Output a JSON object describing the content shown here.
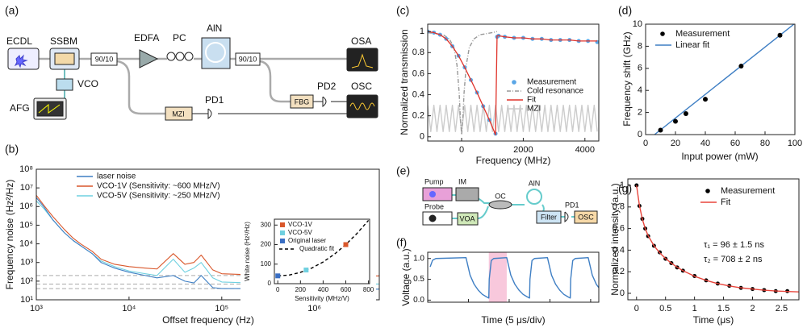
{
  "panel_labels": [
    "(a)",
    "(b)",
    "(c)",
    "(d)",
    "(e)",
    "(f)",
    "(g)"
  ],
  "diagram_a": {
    "labels": [
      "ECDL",
      "SSBM",
      "AFG",
      "VCO",
      "90/10",
      "EDFA",
      "PC",
      "AlN",
      "90/10",
      "OSA",
      "OSC",
      "PD2",
      "FBG",
      "MZI",
      "PD1"
    ]
  },
  "diagram_e": {
    "labels": [
      "Pump",
      "IM",
      "Probe",
      "VOA",
      "OC",
      "AlN",
      "Filter",
      "PD1",
      "OSC"
    ]
  },
  "chart_data": [
    {
      "type": "line",
      "x_label": "Offset frequency (Hz)",
      "y_label": "Frequency noise (Hz²/Hz)",
      "xscale": "log",
      "yscale": "log",
      "xlim": [
        1000,
        5000000
      ],
      "ylim": [
        10,
        100000000
      ],
      "xticks": [
        {
          "value": 1000,
          "label": "10³"
        },
        {
          "value": 10000,
          "label": "10⁴"
        },
        {
          "value": 100000,
          "label": "10⁵"
        },
        {
          "value": 1000000,
          "label": "10⁶"
        }
      ],
      "yticks": [
        {
          "value": 10,
          "label": "10¹"
        },
        {
          "value": 100,
          "label": "10²"
        },
        {
          "value": 1000,
          "label": "10³"
        },
        {
          "value": 10000,
          "label": "10⁴"
        },
        {
          "value": 100000,
          "label": "10⁵"
        },
        {
          "value": 1000000,
          "label": "10⁶"
        },
        {
          "value": 10000000,
          "label": "10⁷"
        },
        {
          "value": 100000000,
          "label": "10⁸"
        }
      ],
      "x": [
        1000,
        1200,
        1500,
        2000,
        2500,
        3000,
        4000,
        5000,
        7000,
        10000,
        15000,
        20000,
        30000,
        40000,
        50000,
        60000,
        80000,
        100000,
        200000,
        500000,
        1000000,
        5000000
      ],
      "reference_lines": [
        200,
        70,
        40
      ],
      "legend": "upper center",
      "series": [
        {
          "name": "laser noise",
          "color": "#3f7fc4",
          "values": [
            3000000,
            1000000,
            200000,
            40000,
            15000,
            8000,
            3000,
            1000,
            500,
            300,
            200,
            150,
            200,
            100,
            80,
            200,
            45,
            40,
            40,
            38,
            38,
            37
          ]
        },
        {
          "name": "VCO-1V (Sensitivity: ~600 MHz/V)",
          "color": "#d9572b",
          "values": [
            4000000,
            1200000,
            300000,
            60000,
            20000,
            10000,
            4000,
            1500,
            800,
            600,
            500,
            450,
            3000,
            800,
            1000,
            2500,
            400,
            250,
            220,
            200,
            200,
            190
          ]
        },
        {
          "name": "VCO-5V (Sensitivity: ~250 MHz/V)",
          "color": "#6fd0e0",
          "values": [
            2000000,
            800000,
            200000,
            40000,
            15000,
            8000,
            3000,
            1200,
            600,
            350,
            250,
            200,
            1500,
            300,
            500,
            1000,
            150,
            90,
            80,
            75,
            72,
            70
          ]
        }
      ]
    },
    {
      "type": "line",
      "x_label": "Frequency (MHz)",
      "y_label": "Normalized transmission",
      "xlim": [
        -1100,
        4450
      ],
      "ylim": [
        -0.04,
        1.07
      ],
      "xticks": [
        0,
        2000,
        4000
      ],
      "yticks": [
        0,
        0.2,
        0.4,
        0.6,
        0.8,
        1
      ],
      "legend": "center right",
      "series": [
        {
          "name": "Measurement",
          "color": "#5aa6e6",
          "style": "markers",
          "x": [
            -1100,
            -900,
            -700,
            -500,
            -300,
            -100,
            100,
            300,
            500,
            700,
            900,
            1100,
            1150,
            1200,
            1400,
            1700,
            2000,
            2300,
            2600,
            2900,
            3200,
            3500,
            3800,
            4100,
            4400
          ],
          "values": [
            1.0,
            0.99,
            0.97,
            0.93,
            0.86,
            0.77,
            0.66,
            0.54,
            0.42,
            0.29,
            0.16,
            0.03,
            0.95,
            0.96,
            0.95,
            0.94,
            0.94,
            0.93,
            0.93,
            0.92,
            0.92,
            0.92,
            0.91,
            0.91,
            0.9
          ]
        },
        {
          "name": "Cold resonance",
          "color": "#999999",
          "style": "dashdot",
          "x": [
            -1100,
            -600,
            -400,
            -250,
            -150,
            -80,
            -40,
            0,
            40,
            80,
            150,
            250,
            400,
            600,
            1000,
            1150
          ],
          "values": [
            0.99,
            0.97,
            0.93,
            0.85,
            0.68,
            0.42,
            0.18,
            0.02,
            0.18,
            0.42,
            0.68,
            0.85,
            0.93,
            0.97,
            0.99,
            1.0
          ]
        },
        {
          "name": "Fit",
          "color": "#e0322a",
          "style": "line",
          "x": [
            -1100,
            -900,
            -700,
            -500,
            -300,
            -100,
            100,
            300,
            500,
            700,
            900,
            1100,
            1150,
            1200,
            1400,
            1700,
            2000,
            2300,
            2600,
            2900,
            3200,
            3500,
            3800,
            4100,
            4400
          ],
          "values": [
            1.0,
            0.99,
            0.97,
            0.93,
            0.86,
            0.77,
            0.66,
            0.54,
            0.42,
            0.29,
            0.16,
            0.02,
            0.96,
            0.96,
            0.95,
            0.94,
            0.94,
            0.93,
            0.93,
            0.92,
            0.92,
            0.92,
            0.91,
            0.91,
            0.91
          ]
        },
        {
          "name": "MZI",
          "color": "#cccccc",
          "style": "line",
          "x": [
            -1100,
            -1000,
            -900,
            -800,
            -700,
            -600,
            -500,
            -400,
            -300,
            -200,
            -100,
            0,
            100,
            200,
            300,
            400,
            500,
            600,
            700,
            800,
            900,
            1000,
            1100,
            1200,
            1300,
            1400,
            1500,
            1600,
            1700,
            1800,
            1900,
            2000,
            2100,
            2200,
            2300,
            2400,
            2500,
            2600,
            2700,
            2800,
            2900,
            3000,
            3100,
            3200,
            3300,
            3400,
            3500,
            3600,
            3700,
            3800,
            3900,
            4000,
            4100,
            4200,
            4300,
            4400
          ],
          "values": [
            0.3,
            0.05,
            0.3,
            0.05,
            0.3,
            0.05,
            0.3,
            0.05,
            0.3,
            0.05,
            0.3,
            0.05,
            0.3,
            0.05,
            0.3,
            0.05,
            0.3,
            0.05,
            0.3,
            0.05,
            0.3,
            0.05,
            0.3,
            0.05,
            0.3,
            0.05,
            0.3,
            0.05,
            0.3,
            0.05,
            0.3,
            0.05,
            0.3,
            0.05,
            0.3,
            0.05,
            0.3,
            0.05,
            0.3,
            0.05,
            0.3,
            0.05,
            0.3,
            0.05,
            0.3,
            0.05,
            0.3,
            0.05,
            0.3,
            0.05,
            0.3,
            0.05,
            0.3,
            0.05,
            0.3,
            0.05
          ]
        }
      ]
    },
    {
      "type": "scatter",
      "x_label": "Input power (mW)",
      "y_label": "Frequency shift (GHz)",
      "xlim": [
        0,
        100
      ],
      "ylim": [
        0,
        10
      ],
      "xticks": [
        0,
        20,
        40,
        60,
        80,
        100
      ],
      "yticks": [
        0,
        2,
        4,
        6,
        8,
        10
      ],
      "legend": "upper left",
      "series": [
        {
          "name": "Measurement",
          "color": "#000000",
          "style": "markers",
          "x": [
            10,
            20,
            27,
            40,
            64,
            90
          ],
          "values": [
            0.4,
            1.2,
            1.9,
            3.2,
            6.2,
            9.0
          ]
        },
        {
          "name": "Linear fit",
          "color": "#3f7fc4",
          "style": "line",
          "x": [
            6,
            100
          ],
          "values": [
            0,
            10.07
          ]
        }
      ]
    },
    {
      "type": "line",
      "x_label": "Time (5 μs/div)",
      "y_label": "Voltage (a.u.)",
      "xlim": [
        0,
        21
      ],
      "ylim": [
        -0.05,
        1.15
      ],
      "xticks": [
        5,
        10,
        15,
        20
      ],
      "show_xtick_labels": false,
      "yticks": [
        {
          "value": 0,
          "label": "0.0"
        },
        {
          "value": 0.5,
          "label": "0.5"
        },
        {
          "value": 1,
          "label": "1.0"
        }
      ],
      "shaded_region": [
        7.5,
        9.7
      ],
      "shade_color": "#f8c8dc",
      "series": [
        {
          "color": "#3f7fc4",
          "style": "line",
          "x": [
            0.3,
            0.6,
            1.0,
            4.7,
            5.2,
            5.7,
            6.2,
            6.7,
            7.2,
            7.5,
            7.55,
            7.8,
            8.1,
            9.7,
            10.2,
            10.7,
            11.2,
            11.7,
            12.2,
            12.5,
            12.55,
            12.8,
            13.1,
            14.7,
            15.2,
            15.7,
            16.2,
            16.7,
            17.2,
            17.5,
            17.55,
            17.8,
            18.1,
            19.7,
            20.2,
            20.7,
            21.0
          ],
          "values": [
            0.8,
            0.96,
            1.0,
            1.02,
            0.6,
            0.38,
            0.24,
            0.14,
            0.08,
            0.05,
            0.5,
            0.95,
            1.0,
            1.02,
            0.6,
            0.38,
            0.24,
            0.14,
            0.08,
            0.05,
            0.5,
            0.95,
            1.0,
            1.02,
            0.6,
            0.38,
            0.24,
            0.14,
            0.08,
            0.05,
            0.5,
            0.95,
            1.0,
            1.02,
            0.6,
            0.38,
            0.3
          ]
        }
      ]
    },
    {
      "type": "scatter",
      "x_label": "Time (μs)",
      "y_label": "Normalized intensity (a.u.)",
      "xlim": [
        -0.15,
        2.8
      ],
      "ylim": [
        -0.06,
        1.06
      ],
      "xticks": [
        0,
        0.5,
        1,
        1.5,
        2,
        2.5
      ],
      "yticks": [
        0,
        0.2,
        0.4,
        0.6,
        0.8,
        1
      ],
      "legend": "upper right",
      "annotations": [
        "τ₁ = 96 ± 1.5 ns",
        "τ₂ = 708 ± 2 ns"
      ],
      "series": [
        {
          "name": "Measurement",
          "color": "#000000",
          "style": "markers",
          "x": [
            0,
            0.05,
            0.1,
            0.15,
            0.2,
            0.3,
            0.4,
            0.5,
            0.6,
            0.7,
            0.8,
            1.0,
            1.2,
            1.4,
            1.6,
            1.8,
            2.0,
            2.2,
            2.4,
            2.6
          ],
          "values": [
            1.0,
            0.81,
            0.69,
            0.6,
            0.53,
            0.44,
            0.38,
            0.32,
            0.28,
            0.24,
            0.21,
            0.16,
            0.12,
            0.09,
            0.07,
            0.05,
            0.04,
            0.03,
            0.02,
            0.02
          ]
        },
        {
          "name": "Fit",
          "color": "#e8453c",
          "style": "line",
          "x": [
            0,
            0.05,
            0.1,
            0.15,
            0.2,
            0.3,
            0.4,
            0.5,
            0.6,
            0.7,
            0.8,
            1.0,
            1.2,
            1.4,
            1.6,
            1.8,
            2.0,
            2.2,
            2.4,
            2.6,
            2.8
          ],
          "values": [
            1.0,
            0.814,
            0.687,
            0.599,
            0.534,
            0.441,
            0.375,
            0.323,
            0.279,
            0.242,
            0.21,
            0.158,
            0.12,
            0.09,
            0.068,
            0.051,
            0.039,
            0.029,
            0.022,
            0.017,
            0.013
          ]
        }
      ]
    },
    {
      "type": "scatter",
      "x_label": "Sensitivity (MHz/V)",
      "y_label": "White noise (Hz²/Hz)",
      "xlim": [
        -30,
        810
      ],
      "ylim": [
        0,
        330
      ],
      "xticks": [
        0,
        200,
        400,
        600,
        800
      ],
      "yticks": [
        0,
        100,
        200,
        300
      ],
      "legend": "upper left",
      "series": [
        {
          "name": "VCO-1V",
          "color": "#d9572b",
          "style": "squares",
          "x": [
            600
          ],
          "values": [
            200
          ]
        },
        {
          "name": "VCO-5V",
          "color": "#6fd0e0",
          "style": "squares",
          "x": [
            250
          ],
          "values": [
            70
          ]
        },
        {
          "name": "Original laser",
          "color": "#3a6fc4",
          "style": "squares",
          "x": [
            0
          ],
          "values": [
            40
          ]
        },
        {
          "name": "Quadratic fit",
          "color": "#000000",
          "style": "dashed",
          "x": [
            0,
            100,
            200,
            300,
            400,
            500,
            600,
            700,
            800
          ],
          "values": [
            40,
            44,
            58,
            80,
            111,
            151,
            200,
            258,
            324
          ]
        }
      ]
    }
  ]
}
